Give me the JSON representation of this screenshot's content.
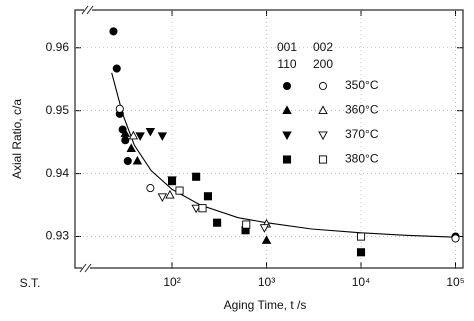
{
  "chart_data": {
    "type": "scatter",
    "x_label": "Aging Time, t /s",
    "y_label": "Axial Ratio, c/a",
    "x_break_label": "S.T.",
    "xlog": true,
    "xlim": [
      9.4,
      120000
    ],
    "xticks": [
      {
        "value": 100,
        "label": "10²"
      },
      {
        "value": 1000,
        "label": "10³"
      },
      {
        "value": 10000,
        "label": "10⁴"
      },
      {
        "value": 100000,
        "label": "10⁵"
      }
    ],
    "ylim": [
      0.925,
      0.966
    ],
    "yticks": [
      0.93,
      0.94,
      0.95,
      0.96
    ],
    "grid": true,
    "color": "#000000",
    "reflection_groups": [
      {
        "lines": [
          "001",
          "110"
        ],
        "filled": true
      },
      {
        "lines": [
          "002",
          "200"
        ],
        "filled": false
      }
    ],
    "series": [
      {
        "name": "350°C",
        "marker": "circle",
        "groups": [
          {
            "x": [
              24,
              26,
              28,
              30,
              32,
              34,
              100000
            ],
            "y": [
              0.9626,
              0.9567,
              0.9495,
              0.947,
              0.9453,
              0.942,
              0.93
            ]
          },
          {
            "x": [
              28,
              59,
              100000
            ],
            "y": [
              0.9503,
              0.9377,
              0.9297
            ]
          }
        ]
      },
      {
        "name": "360°C",
        "marker": "triangle-up",
        "groups": [
          {
            "x": [
              32,
              37,
              43,
              1000
            ],
            "y": [
              0.9464,
              0.944,
              0.942,
              0.9294
            ]
          },
          {
            "x": [
              39,
              95,
              1000
            ],
            "y": [
              0.946,
              0.9366,
              0.932
            ]
          }
        ]
      },
      {
        "name": "370°C",
        "marker": "triangle-down",
        "groups": [
          {
            "x": [
              46,
              59,
              79,
              100
            ],
            "y": [
              0.946,
              0.9467,
              0.946,
              0.939
            ]
          },
          {
            "x": [
              79,
              180,
              950
            ],
            "y": [
              0.9363,
              0.9345,
              0.9314
            ]
          }
        ]
      },
      {
        "name": "380°C",
        "marker": "square",
        "groups": [
          {
            "x": [
              100,
              180,
              240,
              300,
              600,
              10000
            ],
            "y": [
              0.9388,
              0.9395,
              0.9364,
              0.9322,
              0.931,
              0.9275
            ]
          },
          {
            "x": [
              120,
              210,
              610,
              10000
            ],
            "y": [
              0.9373,
              0.9345,
              0.9319,
              0.93
            ]
          }
        ]
      }
    ],
    "fit_curve": {
      "x": [
        23,
        30,
        40,
        60,
        100,
        200,
        500,
        1000,
        3000,
        10000,
        30000,
        100000
      ],
      "y": [
        0.956,
        0.9495,
        0.9445,
        0.9405,
        0.9375,
        0.935,
        0.933,
        0.9322,
        0.9312,
        0.9306,
        0.9302,
        0.9299
      ]
    }
  }
}
